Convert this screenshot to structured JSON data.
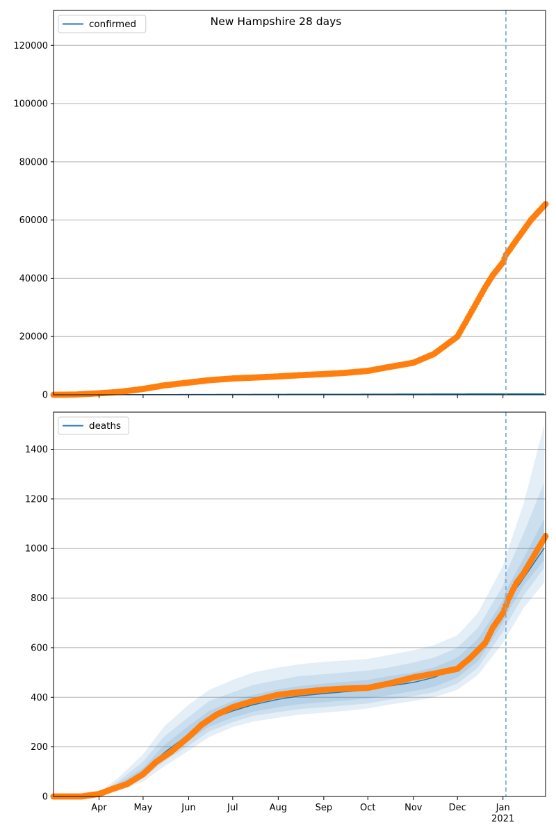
{
  "chart_data": [
    {
      "type": "scatter",
      "title": "New Hampshire 28 days",
      "legend": {
        "label": "confirmed",
        "placement": "top-left"
      },
      "ylim": [
        0,
        132000
      ],
      "yticks": [
        0,
        20000,
        40000,
        60000,
        80000,
        100000,
        120000
      ],
      "grid": "horizontal",
      "forecast_start": "2021-01-03",
      "series": [
        {
          "name": "confirmed",
          "style": "line",
          "points": [
            [
              "2020-03-01",
              0
            ],
            [
              "2021-01-03",
              300
            ],
            [
              "2021-01-30",
              300
            ]
          ]
        },
        {
          "style": "markers",
          "points": [
            [
              "2020-03-01",
              0
            ],
            [
              "2020-03-15",
              50
            ],
            [
              "2020-04-01",
              500
            ],
            [
              "2020-04-15",
              1000
            ],
            [
              "2020-05-01",
              2000
            ],
            [
              "2020-05-15",
              3200
            ],
            [
              "2020-06-01",
              4200
            ],
            [
              "2020-06-15",
              5000
            ],
            [
              "2020-07-01",
              5600
            ],
            [
              "2020-07-15",
              5900
            ],
            [
              "2020-08-01",
              6300
            ],
            [
              "2020-08-15",
              6700
            ],
            [
              "2020-09-01",
              7100
            ],
            [
              "2020-09-15",
              7500
            ],
            [
              "2020-10-01",
              8200
            ],
            [
              "2020-10-15",
              9500
            ],
            [
              "2020-11-01",
              11000
            ],
            [
              "2020-11-15",
              14000
            ],
            [
              "2020-12-01",
              20000
            ],
            [
              "2020-12-10",
              28000
            ],
            [
              "2020-12-20",
              37000
            ],
            [
              "2020-12-25",
              41000
            ],
            [
              "2021-01-01",
              45500
            ],
            [
              "2021-01-03",
              48000
            ],
            [
              "2021-01-10",
              53000
            ],
            [
              "2021-01-20",
              60000
            ],
            [
              "2021-01-30",
              65500
            ]
          ]
        }
      ]
    },
    {
      "type": "scatter",
      "legend": {
        "label": "deaths",
        "placement": "top-left"
      },
      "ylim": [
        0,
        1550
      ],
      "yticks": [
        0,
        200,
        400,
        600,
        800,
        1000,
        1200,
        1400
      ],
      "grid": "horizontal",
      "forecast_start": "2021-01-03",
      "median": [
        [
          "2020-03-01",
          0
        ],
        [
          "2020-03-15",
          0
        ],
        [
          "2020-04-01",
          8
        ],
        [
          "2020-04-15",
          45
        ],
        [
          "2020-05-01",
          95
        ],
        [
          "2020-05-15",
          175
        ],
        [
          "2020-06-01",
          250
        ],
        [
          "2020-06-15",
          310
        ],
        [
          "2020-07-01",
          345
        ],
        [
          "2020-07-15",
          370
        ],
        [
          "2020-08-01",
          392
        ],
        [
          "2020-08-15",
          405
        ],
        [
          "2020-09-01",
          415
        ],
        [
          "2020-09-15",
          422
        ],
        [
          "2020-10-01",
          430
        ],
        [
          "2020-10-15",
          445
        ],
        [
          "2020-11-01",
          460
        ],
        [
          "2020-11-15",
          480
        ],
        [
          "2020-12-01",
          520
        ],
        [
          "2020-12-15",
          590
        ],
        [
          "2021-01-01",
          740
        ],
        [
          "2021-01-03",
          780
        ],
        [
          "2021-01-15",
          880
        ],
        [
          "2021-01-30",
          1010
        ]
      ],
      "bands": [
        {
          "level": "outer",
          "upper": [
            [
              "2020-03-01",
              0
            ],
            [
              "2020-03-15",
              0
            ],
            [
              "2020-04-01",
              15
            ],
            [
              "2020-04-15",
              80
            ],
            [
              "2020-05-01",
              170
            ],
            [
              "2020-05-15",
              280
            ],
            [
              "2020-06-01",
              370
            ],
            [
              "2020-06-15",
              430
            ],
            [
              "2020-07-01",
              470
            ],
            [
              "2020-07-15",
              500
            ],
            [
              "2020-08-01",
              520
            ],
            [
              "2020-08-15",
              533
            ],
            [
              "2020-09-01",
              543
            ],
            [
              "2020-09-15",
              548
            ],
            [
              "2020-10-01",
              555
            ],
            [
              "2020-10-15",
              570
            ],
            [
              "2020-11-01",
              590
            ],
            [
              "2020-11-15",
              610
            ],
            [
              "2020-12-01",
              650
            ],
            [
              "2020-12-15",
              740
            ],
            [
              "2021-01-01",
              930
            ],
            [
              "2021-01-03",
              970
            ],
            [
              "2021-01-15",
              1180
            ],
            [
              "2021-01-30",
              1520
            ]
          ],
          "lower": [
            [
              "2020-03-01",
              0
            ],
            [
              "2020-03-15",
              0
            ],
            [
              "2020-04-01",
              3
            ],
            [
              "2020-04-15",
              25
            ],
            [
              "2020-05-01",
              60
            ],
            [
              "2020-05-15",
              120
            ],
            [
              "2020-06-01",
              185
            ],
            [
              "2020-06-15",
              240
            ],
            [
              "2020-07-01",
              280
            ],
            [
              "2020-07-15",
              302
            ],
            [
              "2020-08-01",
              318
            ],
            [
              "2020-08-15",
              330
            ],
            [
              "2020-09-01",
              338
            ],
            [
              "2020-09-15",
              345
            ],
            [
              "2020-10-01",
              355
            ],
            [
              "2020-10-15",
              370
            ],
            [
              "2020-11-01",
              385
            ],
            [
              "2020-11-15",
              400
            ],
            [
              "2020-12-01",
              430
            ],
            [
              "2020-12-15",
              490
            ],
            [
              "2021-01-01",
              620
            ],
            [
              "2021-01-03",
              640
            ],
            [
              "2021-01-15",
              760
            ],
            [
              "2021-01-30",
              870
            ]
          ]
        },
        {
          "level": "middle",
          "upper": [
            [
              "2020-03-01",
              0
            ],
            [
              "2020-03-15",
              0
            ],
            [
              "2020-04-01",
              12
            ],
            [
              "2020-04-15",
              65
            ],
            [
              "2020-05-01",
              140
            ],
            [
              "2020-05-15",
              240
            ],
            [
              "2020-06-01",
              320
            ],
            [
              "2020-06-15",
              385
            ],
            [
              "2020-07-01",
              420
            ],
            [
              "2020-07-15",
              450
            ],
            [
              "2020-08-01",
              470
            ],
            [
              "2020-08-15",
              485
            ],
            [
              "2020-09-01",
              493
            ],
            [
              "2020-09-15",
              500
            ],
            [
              "2020-10-01",
              508
            ],
            [
              "2020-10-15",
              520
            ],
            [
              "2020-11-01",
              540
            ],
            [
              "2020-11-15",
              560
            ],
            [
              "2020-12-01",
              600
            ],
            [
              "2020-12-15",
              680
            ],
            [
              "2021-01-01",
              850
            ],
            [
              "2021-01-03",
              900
            ],
            [
              "2021-01-15",
              1060
            ],
            [
              "2021-01-30",
              1280
            ]
          ],
          "lower": [
            [
              "2020-03-01",
              0
            ],
            [
              "2020-03-15",
              0
            ],
            [
              "2020-04-01",
              5
            ],
            [
              "2020-04-15",
              32
            ],
            [
              "2020-05-01",
              75
            ],
            [
              "2020-05-15",
              140
            ],
            [
              "2020-06-01",
              205
            ],
            [
              "2020-06-15",
              262
            ],
            [
              "2020-07-01",
              300
            ],
            [
              "2020-07-15",
              325
            ],
            [
              "2020-08-01",
              340
            ],
            [
              "2020-08-15",
              352
            ],
            [
              "2020-09-01",
              360
            ],
            [
              "2020-09-15",
              367
            ],
            [
              "2020-10-01",
              375
            ],
            [
              "2020-10-15",
              390
            ],
            [
              "2020-11-01",
              405
            ],
            [
              "2020-11-15",
              420
            ],
            [
              "2020-12-01",
              455
            ],
            [
              "2020-12-15",
              520
            ],
            [
              "2021-01-01",
              665
            ],
            [
              "2021-01-03",
              690
            ],
            [
              "2021-01-15",
              810
            ],
            [
              "2021-01-30",
              930
            ]
          ]
        },
        {
          "level": "inner",
          "upper": [
            [
              "2020-03-01",
              0
            ],
            [
              "2020-03-15",
              0
            ],
            [
              "2020-04-01",
              10
            ],
            [
              "2020-04-15",
              55
            ],
            [
              "2020-05-01",
              115
            ],
            [
              "2020-05-15",
              205
            ],
            [
              "2020-06-01",
              285
            ],
            [
              "2020-06-15",
              345
            ],
            [
              "2020-07-01",
              385
            ],
            [
              "2020-07-15",
              410
            ],
            [
              "2020-08-01",
              432
            ],
            [
              "2020-08-15",
              445
            ],
            [
              "2020-09-01",
              455
            ],
            [
              "2020-09-15",
              462
            ],
            [
              "2020-10-01",
              470
            ],
            [
              "2020-10-15",
              485
            ],
            [
              "2020-11-01",
              500
            ],
            [
              "2020-11-15",
              520
            ],
            [
              "2020-12-01",
              560
            ],
            [
              "2020-12-15",
              635
            ],
            [
              "2021-01-01",
              790
            ],
            [
              "2021-01-03",
              830
            ],
            [
              "2021-01-15",
              960
            ],
            [
              "2021-01-30",
              1130
            ]
          ],
          "lower": [
            [
              "2020-03-01",
              0
            ],
            [
              "2020-03-15",
              0
            ],
            [
              "2020-04-01",
              6
            ],
            [
              "2020-04-15",
              38
            ],
            [
              "2020-05-01",
              85
            ],
            [
              "2020-05-15",
              155
            ],
            [
              "2020-06-01",
              225
            ],
            [
              "2020-06-15",
              282
            ],
            [
              "2020-07-01",
              318
            ],
            [
              "2020-07-15",
              342
            ],
            [
              "2020-08-01",
              360
            ],
            [
              "2020-08-15",
              372
            ],
            [
              "2020-09-01",
              380
            ],
            [
              "2020-09-15",
              387
            ],
            [
              "2020-10-01",
              395
            ],
            [
              "2020-10-15",
              408
            ],
            [
              "2020-11-01",
              425
            ],
            [
              "2020-11-15",
              442
            ],
            [
              "2020-12-01",
              480
            ],
            [
              "2020-12-15",
              545
            ],
            [
              "2021-01-01",
              700
            ],
            [
              "2021-01-03",
              730
            ],
            [
              "2021-01-15",
              850
            ],
            [
              "2021-01-30",
              960
            ]
          ]
        }
      ],
      "observed": [
        [
          "2020-03-01",
          0
        ],
        [
          "2020-03-20",
          0
        ],
        [
          "2020-04-01",
          10
        ],
        [
          "2020-04-10",
          30
        ],
        [
          "2020-04-20",
          50
        ],
        [
          "2020-05-01",
          90
        ],
        [
          "2020-05-10",
          140
        ],
        [
          "2020-05-20",
          180
        ],
        [
          "2020-06-01",
          240
        ],
        [
          "2020-06-10",
          290
        ],
        [
          "2020-06-20",
          330
        ],
        [
          "2020-07-01",
          360
        ],
        [
          "2020-07-15",
          385
        ],
        [
          "2020-08-01",
          410
        ],
        [
          "2020-08-15",
          420
        ],
        [
          "2020-09-01",
          430
        ],
        [
          "2020-09-15",
          435
        ],
        [
          "2020-10-01",
          438
        ],
        [
          "2020-10-15",
          455
        ],
        [
          "2020-11-01",
          480
        ],
        [
          "2020-11-15",
          495
        ],
        [
          "2020-12-01",
          515
        ],
        [
          "2020-12-10",
          560
        ],
        [
          "2020-12-20",
          620
        ],
        [
          "2020-12-25",
          680
        ],
        [
          "2021-01-01",
          740
        ],
        [
          "2021-01-05",
          800
        ],
        [
          "2021-01-10",
          860
        ],
        [
          "2021-01-15",
          900
        ],
        [
          "2021-01-20",
          950
        ],
        [
          "2021-01-25",
          1000
        ],
        [
          "2021-01-30",
          1050
        ]
      ]
    }
  ],
  "x_axis": {
    "start": "2020-03-01",
    "end": "2021-01-30",
    "month_ticks": [
      {
        "date": "2020-04-01",
        "label": "Apr"
      },
      {
        "date": "2020-05-01",
        "label": "May"
      },
      {
        "date": "2020-06-01",
        "label": "Jun"
      },
      {
        "date": "2020-07-01",
        "label": "Jul"
      },
      {
        "date": "2020-08-01",
        "label": "Aug"
      },
      {
        "date": "2020-09-01",
        "label": "Sep"
      },
      {
        "date": "2020-10-01",
        "label": "Oct"
      },
      {
        "date": "2020-11-01",
        "label": "Nov"
      },
      {
        "date": "2020-12-01",
        "label": "Dec"
      },
      {
        "date": "2021-01-01",
        "label": "Jan"
      }
    ],
    "year_label": {
      "date": "2021-01-01",
      "label": "2021"
    }
  },
  "colors": {
    "line": "#1f77b4",
    "marker": "#ff7f0e",
    "band": "#1f77b4",
    "grid": "#b0b0b0",
    "vline": "#7fb0d8"
  }
}
